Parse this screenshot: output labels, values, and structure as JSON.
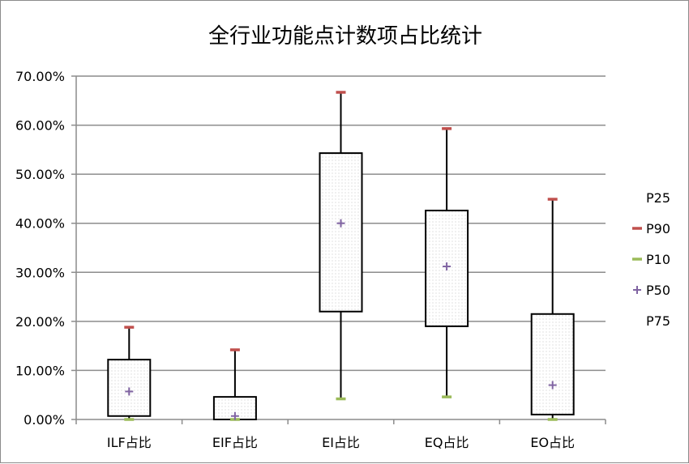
{
  "chart_data": {
    "type": "box",
    "title": "全行业功能点计数项占比统计",
    "categories": [
      "ILF占比",
      "EIF占比",
      "EI占比",
      "EQ占比",
      "EO占比"
    ],
    "ylim": [
      0,
      0.7
    ],
    "y_ticks": [
      "0.00%",
      "10.00%",
      "20.00%",
      "30.00%",
      "40.00%",
      "50.00%",
      "60.00%",
      "70.00%"
    ],
    "series": [
      {
        "name": "P25",
        "values": [
          0.007,
          0.0,
          0.22,
          0.19,
          0.01
        ]
      },
      {
        "name": "P90",
        "values": [
          0.188,
          0.142,
          0.667,
          0.593,
          0.449
        ]
      },
      {
        "name": "P10",
        "values": [
          0.0,
          0.0,
          0.042,
          0.046,
          0.0
        ]
      },
      {
        "name": "P50",
        "values": [
          0.057,
          0.007,
          0.4,
          0.312,
          0.07
        ]
      },
      {
        "name": "P75",
        "values": [
          0.122,
          0.046,
          0.543,
          0.426,
          0.215
        ]
      }
    ],
    "legend_position": "right",
    "grid": true,
    "colors": {
      "p90": "#c0504d",
      "p10": "#9bbb59",
      "p50": "#8064a2",
      "box_border": "#000000",
      "grid": "#8c8c8c"
    }
  }
}
